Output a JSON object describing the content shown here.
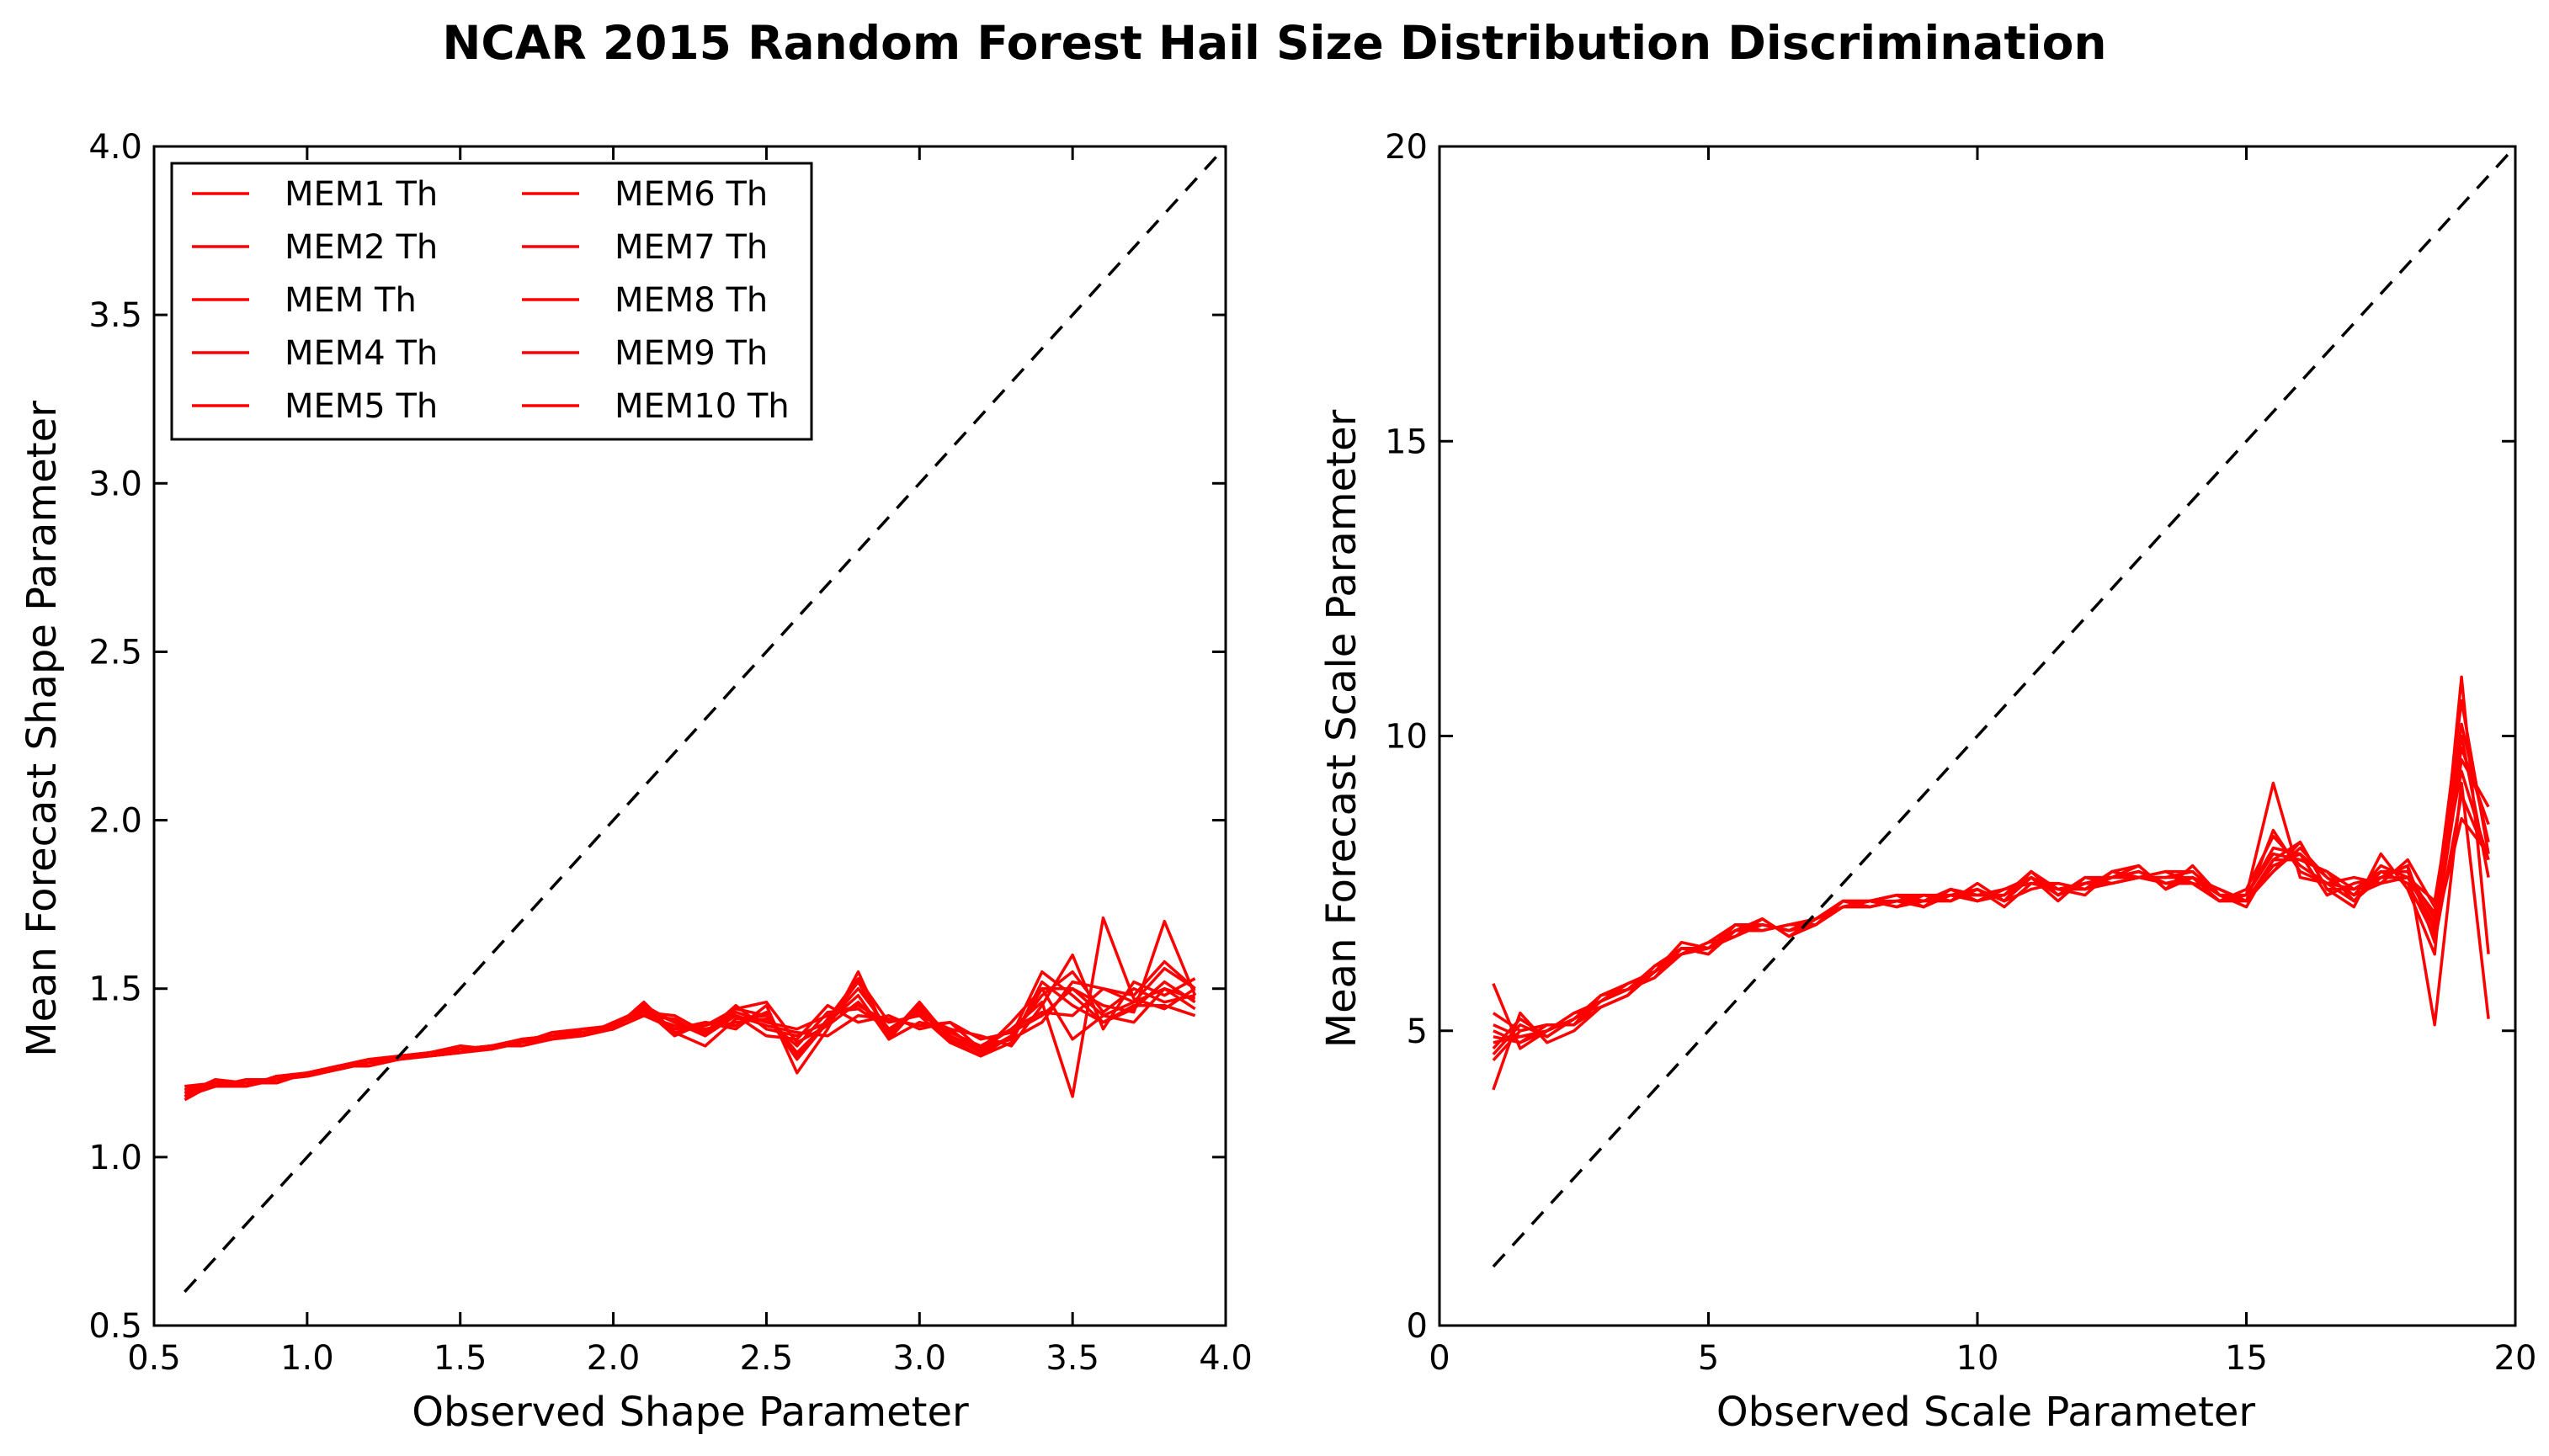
{
  "title": "NCAR 2015 Random Forest Hail Size Distribution Discrimination",
  "colors": {
    "series": "#ff0000",
    "reference": "#000000",
    "background": "#ffffff"
  },
  "chart_data": [
    {
      "type": "line",
      "xlabel": "Observed Shape Parameter",
      "ylabel": "Mean Forecast Shape Parameter",
      "xlim": [
        0.5,
        4.0
      ],
      "ylim": [
        0.5,
        4.0
      ],
      "xticks": [
        "0.5",
        "1.0",
        "1.5",
        "2.0",
        "2.5",
        "3.0",
        "3.5",
        "4.0"
      ],
      "yticks": [
        "0.5",
        "1.0",
        "1.5",
        "2.0",
        "2.5",
        "3.0",
        "3.5",
        "4.0"
      ],
      "grid": false,
      "legend": {
        "placement": "top-left",
        "columns": 2
      },
      "reference_line": {
        "style": "dashed",
        "x": [
          0.6,
          4.0
        ],
        "y": [
          0.6,
          4.0
        ]
      },
      "x": [
        0.6,
        0.7,
        0.8,
        0.9,
        1.0,
        1.1,
        1.2,
        1.3,
        1.4,
        1.5,
        1.6,
        1.7,
        1.8,
        1.9,
        2.0,
        2.1,
        2.2,
        2.3,
        2.4,
        2.5,
        2.6,
        2.7,
        2.8,
        2.9,
        3.0,
        3.1,
        3.2,
        3.3,
        3.4,
        3.5,
        3.6,
        3.7,
        3.8,
        3.9
      ],
      "series": [
        {
          "name": "MEM1 Th",
          "values": [
            1.18,
            1.21,
            1.21,
            1.23,
            1.25,
            1.27,
            1.28,
            1.29,
            1.31,
            1.32,
            1.32,
            1.34,
            1.36,
            1.37,
            1.39,
            1.45,
            1.4,
            1.36,
            1.44,
            1.42,
            1.31,
            1.4,
            1.5,
            1.38,
            1.44,
            1.34,
            1.3,
            1.36,
            1.55,
            1.48,
            1.4,
            1.44,
            1.52,
            1.46
          ]
        },
        {
          "name": "MEM2 Th",
          "values": [
            1.2,
            1.22,
            1.21,
            1.24,
            1.24,
            1.26,
            1.28,
            1.3,
            1.3,
            1.31,
            1.33,
            1.33,
            1.35,
            1.37,
            1.38,
            1.42,
            1.38,
            1.39,
            1.42,
            1.36,
            1.35,
            1.45,
            1.4,
            1.42,
            1.38,
            1.4,
            1.32,
            1.35,
            1.4,
            1.52,
            1.5,
            1.46,
            1.56,
            1.5
          ]
        },
        {
          "name": "MEM Th",
          "values": [
            1.19,
            1.23,
            1.22,
            1.22,
            1.25,
            1.27,
            1.27,
            1.29,
            1.31,
            1.33,
            1.32,
            1.35,
            1.35,
            1.36,
            1.4,
            1.44,
            1.36,
            1.4,
            1.38,
            1.45,
            1.25,
            1.38,
            1.55,
            1.35,
            1.45,
            1.36,
            1.31,
            1.4,
            1.5,
            1.35,
            1.42,
            1.4,
            1.5,
            1.44
          ]
        },
        {
          "name": "MEM4 Th",
          "values": [
            1.21,
            1.21,
            1.23,
            1.23,
            1.25,
            1.26,
            1.28,
            1.3,
            1.31,
            1.32,
            1.33,
            1.34,
            1.37,
            1.38,
            1.39,
            1.43,
            1.42,
            1.37,
            1.43,
            1.4,
            1.38,
            1.42,
            1.45,
            1.4,
            1.42,
            1.38,
            1.36,
            1.33,
            1.45,
            1.6,
            1.38,
            1.52,
            1.48,
            1.53
          ]
        },
        {
          "name": "MEM5 Th",
          "values": [
            1.17,
            1.22,
            1.21,
            1.24,
            1.24,
            1.27,
            1.29,
            1.29,
            1.3,
            1.31,
            1.32,
            1.35,
            1.36,
            1.36,
            1.38,
            1.46,
            1.37,
            1.33,
            1.41,
            1.42,
            1.29,
            1.4,
            1.52,
            1.36,
            1.46,
            1.35,
            1.3,
            1.34,
            1.52,
            1.45,
            1.4,
            1.45,
            1.45,
            1.42
          ]
        },
        {
          "name": "MEM6 Th",
          "values": [
            1.2,
            1.21,
            1.22,
            1.23,
            1.25,
            1.27,
            1.28,
            1.3,
            1.31,
            1.32,
            1.32,
            1.34,
            1.36,
            1.37,
            1.38,
            1.42,
            1.39,
            1.38,
            1.4,
            1.41,
            1.33,
            1.43,
            1.44,
            1.38,
            1.43,
            1.37,
            1.33,
            1.38,
            1.43,
            1.42,
            1.5,
            1.48,
            1.58,
            1.5
          ]
        },
        {
          "name": "MEM7 Th",
          "values": [
            1.19,
            1.22,
            1.22,
            1.23,
            1.24,
            1.27,
            1.28,
            1.3,
            1.3,
            1.32,
            1.33,
            1.34,
            1.37,
            1.37,
            1.39,
            1.44,
            1.4,
            1.37,
            1.45,
            1.38,
            1.36,
            1.4,
            1.48,
            1.35,
            1.4,
            1.38,
            1.31,
            1.36,
            1.48,
            1.55,
            1.43,
            1.5,
            1.46,
            1.48
          ]
        },
        {
          "name": "MEM8 Th",
          "values": [
            1.18,
            1.23,
            1.21,
            1.24,
            1.25,
            1.26,
            1.28,
            1.29,
            1.31,
            1.33,
            1.32,
            1.34,
            1.35,
            1.38,
            1.39,
            1.43,
            1.38,
            1.4,
            1.39,
            1.43,
            1.3,
            1.41,
            1.53,
            1.4,
            1.42,
            1.34,
            1.33,
            1.35,
            1.5,
            1.5,
            1.42,
            1.46,
            1.5,
            1.47
          ]
        },
        {
          "name": "MEM9 Th",
          "values": [
            1.2,
            1.21,
            1.23,
            1.22,
            1.25,
            1.27,
            1.29,
            1.3,
            1.3,
            1.31,
            1.33,
            1.35,
            1.36,
            1.36,
            1.4,
            1.42,
            1.41,
            1.36,
            1.42,
            1.39,
            1.37,
            1.36,
            1.42,
            1.41,
            1.39,
            1.4,
            1.35,
            1.37,
            1.42,
            1.5,
            1.45,
            1.43,
            1.7,
            1.48
          ]
        },
        {
          "name": "MEM10 Th",
          "values": [
            1.21,
            1.22,
            1.21,
            1.24,
            1.24,
            1.26,
            1.28,
            1.29,
            1.31,
            1.32,
            1.33,
            1.34,
            1.36,
            1.37,
            1.38,
            1.45,
            1.37,
            1.39,
            1.44,
            1.46,
            1.34,
            1.39,
            1.46,
            1.37,
            1.44,
            1.36,
            1.32,
            1.38,
            1.46,
            1.18,
            1.71,
            1.47,
            1.44,
            1.5
          ]
        }
      ]
    },
    {
      "type": "line",
      "xlabel": "Observed Scale Parameter",
      "ylabel": "Mean Forecast Scale Parameter",
      "xlim": [
        0,
        20
      ],
      "ylim": [
        0,
        20
      ],
      "xticks": [
        "0",
        "5",
        "10",
        "15",
        "20"
      ],
      "yticks": [
        "0",
        "5",
        "10",
        "15",
        "20"
      ],
      "grid": false,
      "reference_line": {
        "style": "dashed",
        "x": [
          1,
          20
        ],
        "y": [
          1,
          20
        ]
      },
      "x": [
        1.0,
        1.5,
        2.0,
        2.5,
        3.0,
        3.5,
        4.0,
        4.5,
        5.0,
        5.5,
        6.0,
        6.5,
        7.0,
        7.5,
        8.0,
        8.5,
        9.0,
        9.5,
        10.0,
        10.5,
        11.0,
        11.5,
        12.0,
        12.5,
        13.0,
        13.5,
        14.0,
        14.5,
        15.0,
        15.5,
        16.0,
        16.5,
        17.0,
        17.5,
        18.0,
        18.5,
        19.0,
        19.5
      ],
      "series": [
        {
          "name": "MEM1 Th",
          "values": [
            4.8,
            4.9,
            5.0,
            5.2,
            5.5,
            5.7,
            6.0,
            6.4,
            6.4,
            6.7,
            6.8,
            6.7,
            6.9,
            7.1,
            7.2,
            7.3,
            7.1,
            7.4,
            7.2,
            7.3,
            7.7,
            7.3,
            7.5,
            7.6,
            7.7,
            7.5,
            7.6,
            7.4,
            7.2,
            7.8,
            8.0,
            7.6,
            7.3,
            7.8,
            7.6,
            6.8,
            10.2,
            8.2
          ]
        },
        {
          "name": "MEM2 Th",
          "values": [
            5.0,
            4.8,
            5.1,
            5.1,
            5.4,
            5.6,
            6.1,
            6.3,
            6.5,
            6.6,
            6.9,
            6.6,
            6.8,
            7.2,
            7.1,
            7.2,
            7.3,
            7.2,
            7.4,
            7.1,
            7.5,
            7.4,
            7.3,
            7.7,
            7.6,
            7.7,
            7.5,
            7.2,
            7.4,
            8.3,
            7.8,
            7.5,
            7.6,
            7.5,
            7.9,
            7.1,
            9.4,
            7.9
          ]
        },
        {
          "name": "MEM Th",
          "values": [
            4.6,
            5.1,
            4.9,
            5.2,
            5.6,
            5.7,
            5.9,
            6.4,
            6.3,
            6.8,
            6.7,
            6.8,
            6.9,
            7.2,
            7.2,
            7.1,
            7.2,
            7.3,
            7.3,
            7.4,
            7.6,
            7.2,
            7.6,
            7.5,
            7.6,
            7.6,
            7.7,
            7.3,
            7.1,
            7.9,
            8.2,
            7.4,
            7.1,
            8.0,
            7.4,
            6.3,
            11.0,
            6.3
          ]
        },
        {
          "name": "MEM4 Th",
          "values": [
            5.8,
            4.7,
            5.0,
            5.3,
            5.5,
            5.8,
            6.0,
            6.3,
            6.4,
            6.7,
            6.8,
            6.7,
            6.8,
            7.1,
            7.2,
            7.3,
            7.2,
            7.2,
            7.5,
            7.2,
            7.4,
            7.5,
            7.4,
            7.7,
            7.8,
            7.4,
            7.8,
            7.3,
            7.3,
            8.0,
            7.9,
            7.7,
            7.4,
            7.7,
            7.7,
            6.9,
            9.8,
            8.5
          ]
        },
        {
          "name": "MEM5 Th",
          "values": [
            4.0,
            5.3,
            4.8,
            5.0,
            5.4,
            5.6,
            6.0,
            6.5,
            6.4,
            6.6,
            6.9,
            6.6,
            6.9,
            7.2,
            7.1,
            7.2,
            7.1,
            7.4,
            7.3,
            7.3,
            7.7,
            7.3,
            7.5,
            7.5,
            7.6,
            7.5,
            7.5,
            7.2,
            7.2,
            8.4,
            7.7,
            7.5,
            7.2,
            7.6,
            7.8,
            5.1,
            9.2,
            5.2
          ]
        },
        {
          "name": "MEM6 Th",
          "values": [
            4.9,
            4.8,
            5.0,
            5.2,
            5.5,
            5.7,
            6.1,
            6.3,
            6.5,
            6.8,
            6.8,
            6.7,
            6.9,
            7.1,
            7.2,
            7.2,
            7.2,
            7.3,
            7.2,
            7.4,
            7.5,
            7.4,
            7.4,
            7.6,
            7.7,
            7.5,
            7.6,
            7.4,
            7.2,
            7.7,
            8.1,
            7.6,
            7.3,
            7.5,
            7.6,
            7.0,
            10.6,
            8.0
          ]
        },
        {
          "name": "MEM7 Th",
          "values": [
            5.3,
            5.0,
            5.1,
            5.1,
            5.6,
            5.8,
            6.0,
            6.4,
            6.3,
            6.7,
            6.7,
            6.8,
            6.8,
            7.2,
            7.2,
            7.3,
            7.3,
            7.2,
            7.4,
            7.2,
            7.6,
            7.3,
            7.6,
            7.6,
            7.6,
            7.7,
            7.7,
            7.3,
            7.3,
            9.2,
            7.6,
            7.5,
            7.4,
            7.7,
            7.5,
            6.6,
            9.6,
            8.8
          ]
        },
        {
          "name": "MEM8 Th",
          "values": [
            4.7,
            5.2,
            4.9,
            5.2,
            5.5,
            5.7,
            5.9,
            6.3,
            6.4,
            6.7,
            6.9,
            6.6,
            6.9,
            7.1,
            7.1,
            7.2,
            7.2,
            7.4,
            7.3,
            7.3,
            7.6,
            7.4,
            7.5,
            7.6,
            7.8,
            7.4,
            7.6,
            7.3,
            7.2,
            7.9,
            7.9,
            7.7,
            7.2,
            7.7,
            7.7,
            6.7,
            8.6,
            8.0
          ]
        },
        {
          "name": "MEM9 Th",
          "values": [
            5.1,
            4.9,
            5.0,
            5.3,
            5.4,
            5.6,
            6.1,
            6.4,
            6.4,
            6.8,
            6.8,
            6.7,
            6.8,
            7.2,
            7.2,
            7.1,
            7.3,
            7.3,
            7.2,
            7.4,
            7.5,
            7.5,
            7.4,
            7.5,
            7.6,
            7.6,
            7.6,
            7.2,
            7.3,
            8.1,
            8.0,
            7.3,
            7.5,
            7.6,
            7.6,
            7.2,
            10.0,
            7.6
          ]
        },
        {
          "name": "MEM10 Th",
          "values": [
            4.5,
            5.0,
            5.1,
            5.1,
            5.5,
            5.8,
            6.0,
            6.3,
            6.5,
            6.6,
            6.8,
            6.7,
            6.9,
            7.1,
            7.2,
            7.3,
            7.1,
            7.3,
            7.4,
            7.2,
            7.7,
            7.4,
            7.5,
            7.6,
            7.7,
            7.5,
            7.5,
            7.4,
            7.2,
            7.7,
            8.2,
            7.4,
            7.4,
            7.6,
            7.8,
            6.5,
            9.0,
            7.9
          ]
        }
      ]
    }
  ]
}
